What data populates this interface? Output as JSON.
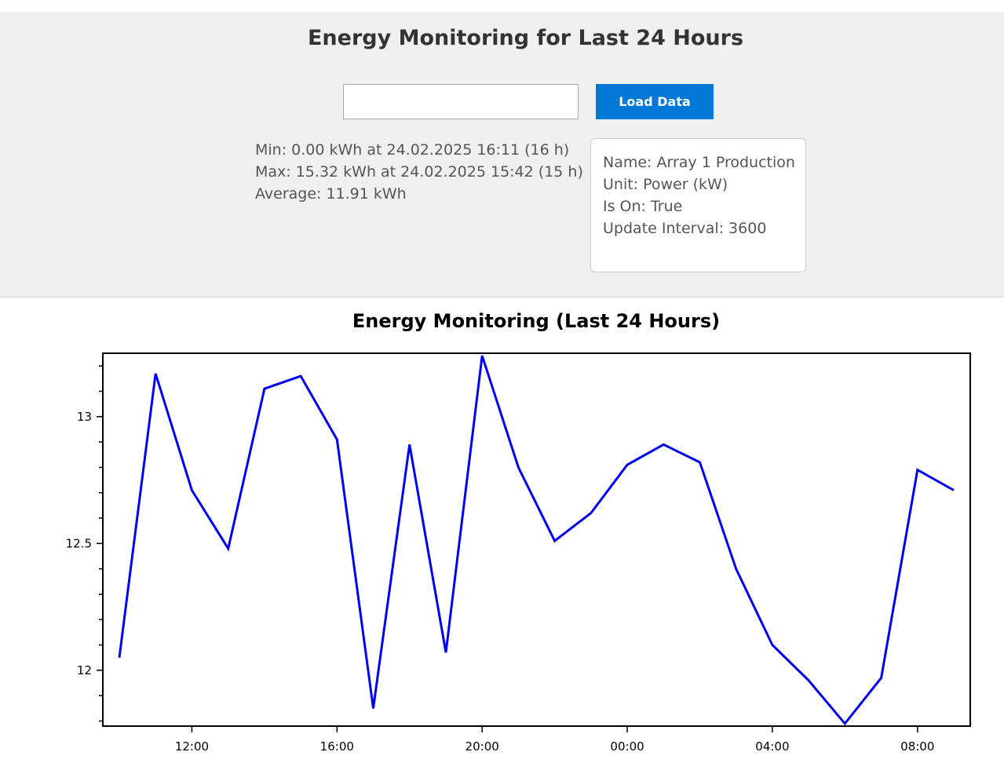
{
  "header": {
    "title": "Energy Monitoring for Last 24 Hours"
  },
  "controls": {
    "input_value": "",
    "input_placeholder": "",
    "load_button_label": "Load Data"
  },
  "stats": {
    "min": "Min: 0.00 kWh at 24.02.2025 16:11 (16 h)",
    "max": "Max: 15.32 kWh at 24.02.2025 15:42 (15 h)",
    "average": "Average: 11.91 kWh"
  },
  "info": {
    "name": "Name: Array 1 Production",
    "unit": "Unit: Power (kW)",
    "is_on": "Is On: True",
    "update_interval": "Update Interval: 3600"
  },
  "colors": {
    "accent": "#0078d4",
    "series": "#0000ee"
  },
  "chart_data": {
    "type": "line",
    "title": "Energy Monitoring (Last 24 Hours)",
    "xlabel": "",
    "ylabel": "",
    "x": [
      "10:00",
      "11:00",
      "12:00",
      "13:00",
      "14:00",
      "15:00",
      "16:00",
      "17:00",
      "18:00",
      "19:00",
      "20:00",
      "21:00",
      "22:00",
      "23:00",
      "00:00",
      "01:00",
      "02:00",
      "03:00",
      "04:00",
      "05:00",
      "06:00",
      "07:00",
      "08:00",
      "09:00"
    ],
    "x_tick_labels": [
      "12:00",
      "16:00",
      "20:00",
      "00:00",
      "04:00",
      "08:00"
    ],
    "series": [
      {
        "name": "",
        "values": [
          12.05,
          13.17,
          12.71,
          12.48,
          13.11,
          13.16,
          12.91,
          11.85,
          12.89,
          12.07,
          13.24,
          12.8,
          12.51,
          12.62,
          12.81,
          12.89,
          12.82,
          12.4,
          12.1,
          11.96,
          11.79,
          11.97,
          12.79,
          12.71
        ]
      }
    ],
    "y_ticks": [
      12,
      12.5,
      13
    ],
    "y_tick_labels": [
      "12",
      "12.5",
      "13"
    ],
    "ylim": [
      11.78,
      13.25
    ],
    "grid": false,
    "legend": "none"
  }
}
